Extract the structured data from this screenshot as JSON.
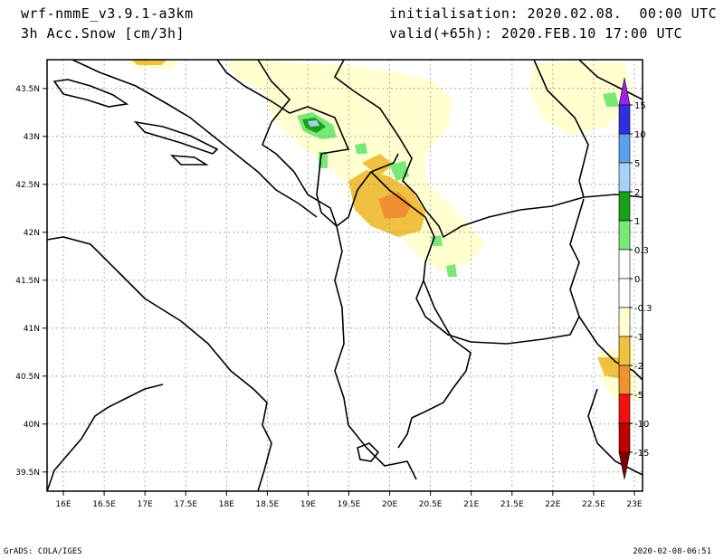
{
  "header": {
    "model": "wrf-nmmE_v3.9.1-a3km",
    "field": "3h Acc.Snow [cm/3h]",
    "init": "initialisation: 2020.02.08.  00:00 UTC",
    "valid": "valid(+65h): 2020.FEB.10 17:00 UTC"
  },
  "footer": {
    "credit": "GrADS: COLA/IGES",
    "timestamp": "2020-02-08-06:51"
  },
  "map": {
    "lon_range": [
      15.8,
      23.1
    ],
    "lat_range": [
      39.3,
      43.8
    ],
    "lon_ticks": [
      "16E",
      "16.5E",
      "17E",
      "17.5E",
      "18E",
      "18.5E",
      "19E",
      "19.5E",
      "20E",
      "20.5E",
      "21E",
      "21.5E",
      "22E",
      "22.5E",
      "23E"
    ],
    "lat_ticks": [
      "39.5N",
      "40N",
      "40.5N",
      "41N",
      "41.5N",
      "42N",
      "42.5N",
      "43N",
      "43.5N"
    ],
    "grid": true
  },
  "legend": {
    "labels": [
      "15",
      "10",
      "5",
      "2",
      "1",
      "0.3",
      "0",
      "-0.3",
      "-1",
      "-2",
      "-5",
      "-10",
      "-15"
    ],
    "colors": [
      "#a020f0",
      "#3030e0",
      "#5aa0f0",
      "#a8d0f8",
      "#18a018",
      "#78e878",
      "#ffffff",
      "#ffffff",
      "#ffffd0",
      "#f0c040",
      "#f09030",
      "#f01010",
      "#c00000",
      "#800000"
    ]
  }
}
